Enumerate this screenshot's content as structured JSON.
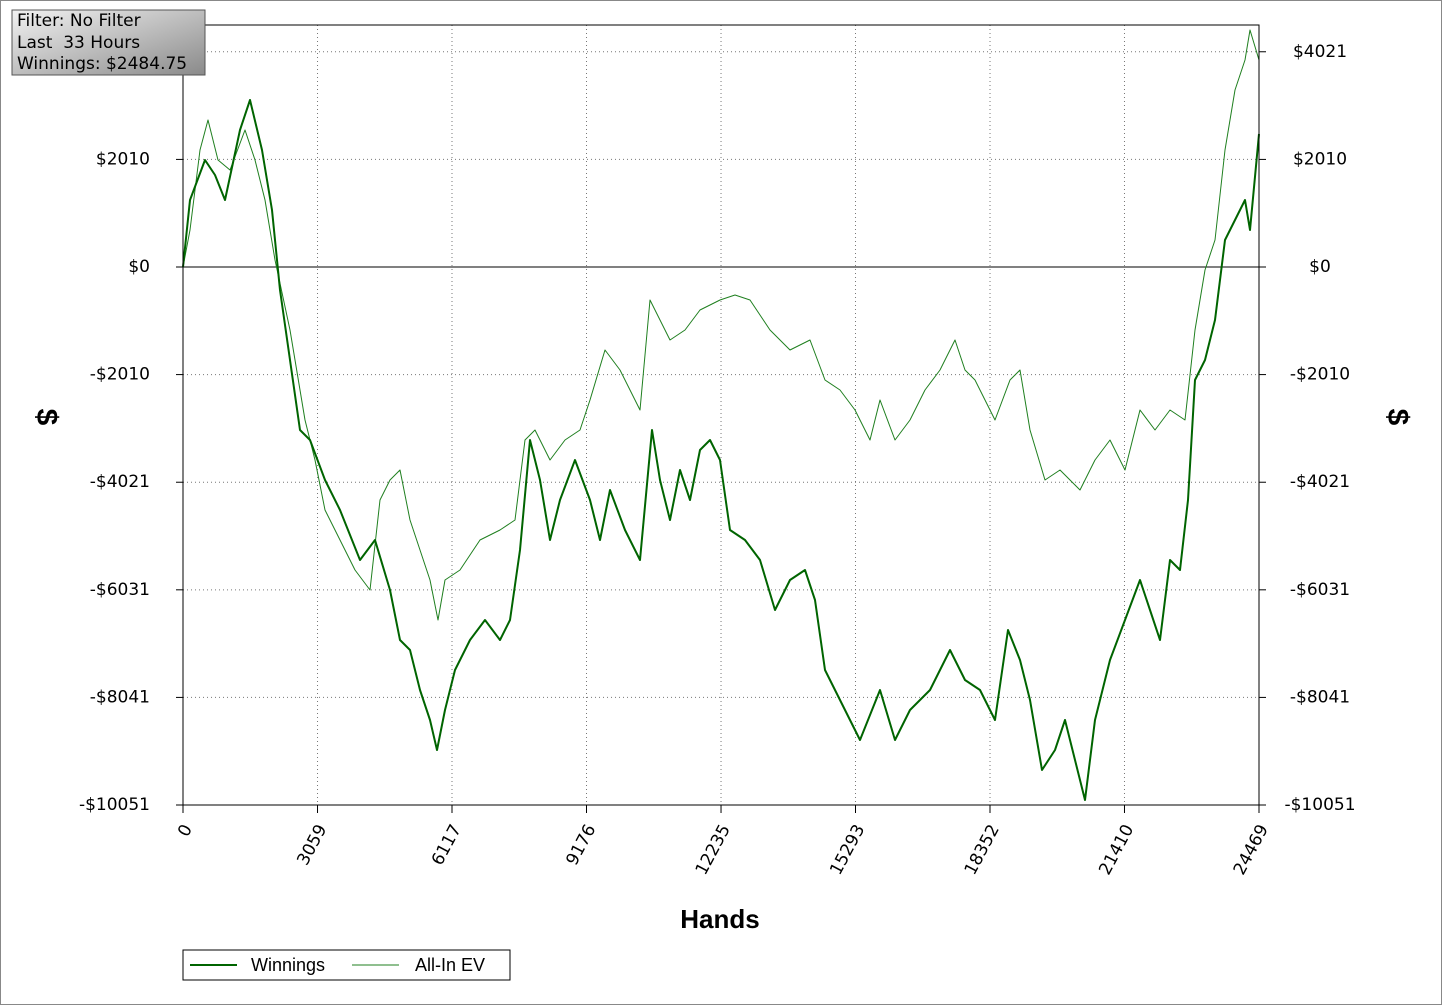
{
  "info": {
    "filter": "Filter: No Filter",
    "period": "Last  33 Hours",
    "winnings": "Winnings: $2484.75"
  },
  "chart_data": {
    "type": "line",
    "xlabel": "Hands",
    "ylabel": "$",
    "y2label": "$",
    "xlim": [
      0,
      24469
    ],
    "xticks": [
      0,
      3059,
      6117,
      9176,
      12235,
      15293,
      18352,
      21410,
      24469
    ],
    "ylim": [
      -10051,
      4521
    ],
    "yticks": [
      {
        "value": -10051,
        "label": "-$10051"
      },
      {
        "value": -8041,
        "label": "-$8041"
      },
      {
        "value": -6031,
        "label": "-$6031"
      },
      {
        "value": -4021,
        "label": "-$4021"
      },
      {
        "value": -2010,
        "label": "-$2010"
      },
      {
        "value": 0,
        "label": "$0"
      },
      {
        "value": 2010,
        "label": "$2010"
      },
      {
        "value": 4021,
        "label": "$4021"
      }
    ],
    "y2lim": [
      -10051,
      4521
    ],
    "y2ticks": [
      {
        "value": -10051,
        "label": "-$10051"
      },
      {
        "value": -8041,
        "label": "-$8041"
      },
      {
        "value": -6031,
        "label": "-$6031"
      },
      {
        "value": -4021,
        "label": "-$4021"
      },
      {
        "value": -2010,
        "label": "-$2010"
      },
      {
        "value": 0,
        "label": "$0"
      },
      {
        "value": 2010,
        "label": "$2010"
      },
      {
        "value": 4021,
        "label": "$4021"
      }
    ],
    "grid": true,
    "legend": "bottom-left",
    "series": [
      {
        "name": "Winnings",
        "color": "#006400",
        "width": 2,
        "x": [
          0,
          159,
          500,
          728,
          955,
          1296,
          1524,
          1797,
          2024,
          2206,
          2433,
          2661,
          2888,
          3229,
          3570,
          4025,
          4366,
          4707,
          4935,
          5162,
          5390,
          5617,
          5776,
          5958,
          6186,
          6527,
          6868,
          7209,
          7436,
          7664,
          7891,
          8118,
          8346,
          8573,
          8914,
          9256,
          9483,
          9710,
          10051,
          10393,
          10665,
          10848,
          11075,
          11302,
          11530,
          11757,
          11984,
          12212,
          12439,
          12780,
          13121,
          13462,
          13804,
          14145,
          14372,
          14599,
          14941,
          15396,
          15850,
          16191,
          16533,
          16987,
          17442,
          17783,
          18125,
          18466,
          18761,
          19034,
          19261,
          19535,
          19830,
          20057,
          20285,
          20512,
          20740,
          21081,
          21422,
          21763,
          21990,
          22218,
          22445,
          22673,
          22854,
          23013,
          23241,
          23468,
          23696,
          23923,
          24151,
          24264,
          24469
        ],
        "values": [
          0,
          1252,
          1999,
          1719,
          1252,
          2559,
          3120,
          2186,
          1065,
          -430,
          -1737,
          -3045,
          -3232,
          -3979,
          -4540,
          -5474,
          -5100,
          -6034,
          -6968,
          -7155,
          -7902,
          -8463,
          -9023,
          -8276,
          -7529,
          -6968,
          -6595,
          -6968,
          -6595,
          -5287,
          -3232,
          -3979,
          -5100,
          -4353,
          -3606,
          -4353,
          -5100,
          -4166,
          -4913,
          -5474,
          -3045,
          -3979,
          -4727,
          -3792,
          -4353,
          -3419,
          -3232,
          -3606,
          -4913,
          -5100,
          -5474,
          -6408,
          -5847,
          -5661,
          -6221,
          -7529,
          -8089,
          -8837,
          -7902,
          -8837,
          -8276,
          -7902,
          -7155,
          -7716,
          -7902,
          -8463,
          -6782,
          -7342,
          -8089,
          -9397,
          -9023,
          -8463,
          -9210,
          -9958,
          -8463,
          -7342,
          -6595,
          -5847,
          -6408,
          -6968,
          -5474,
          -5661,
          -4353,
          -2111,
          -1737,
          -990,
          504,
          878,
          1252,
          691,
          2484.75
        ]
      },
      {
        "name": "All-In EV",
        "color": "#1f7f1f",
        "width": 1,
        "x": [
          0,
          159,
          387,
          569,
          796,
          1069,
          1410,
          1637,
          1865,
          2092,
          2433,
          2774,
          3002,
          3229,
          3570,
          3911,
          4252,
          4480,
          4707,
          4935,
          5162,
          5390,
          5617,
          5799,
          5958,
          6299,
          6754,
          7209,
          7550,
          7777,
          8005,
          8346,
          8687,
          9028,
          9256,
          9597,
          9938,
          10165,
          10393,
          10620,
          10848,
          11075,
          11416,
          11757,
          12212,
          12553,
          12894,
          13349,
          13804,
          14258,
          14599,
          14941,
          15282,
          15623,
          15850,
          16191,
          16533,
          16874,
          17215,
          17556,
          17783,
          18011,
          18238,
          18466,
          18807,
          19034,
          19261,
          19603,
          19944,
          20398,
          20740,
          21081,
          21422,
          21763,
          22104,
          22445,
          22786,
          23013,
          23241,
          23468,
          23696,
          23923,
          24151,
          24264,
          24469
        ],
        "values": [
          0,
          691,
          2186,
          2746,
          1999,
          1812,
          2559,
          1999,
          1252,
          131,
          -1177,
          -2858,
          -3606,
          -4540,
          -5100,
          -5661,
          -6034,
          -4353,
          -3979,
          -3792,
          -4727,
          -5287,
          -5847,
          -6595,
          -5847,
          -5661,
          -5100,
          -4913,
          -4727,
          -3232,
          -3045,
          -3606,
          -3232,
          -3045,
          -2485,
          -1551,
          -1924,
          -2298,
          -2672,
          -617,
          -990,
          -1364,
          -1177,
          -803,
          -617,
          -523,
          -617,
          -1177,
          -1551,
          -1364,
          -2111,
          -2298,
          -2672,
          -3232,
          -2485,
          -3232,
          -2858,
          -2298,
          -1924,
          -1364,
          -1924,
          -2111,
          -2485,
          -2858,
          -2111,
          -1924,
          -3045,
          -3979,
          -3792,
          -4166,
          -3606,
          -3232,
          -3792,
          -2672,
          -3045,
          -2672,
          -2858,
          -1177,
          -56,
          504,
          2186,
          3307,
          3867,
          4428,
          3867
        ]
      }
    ]
  }
}
